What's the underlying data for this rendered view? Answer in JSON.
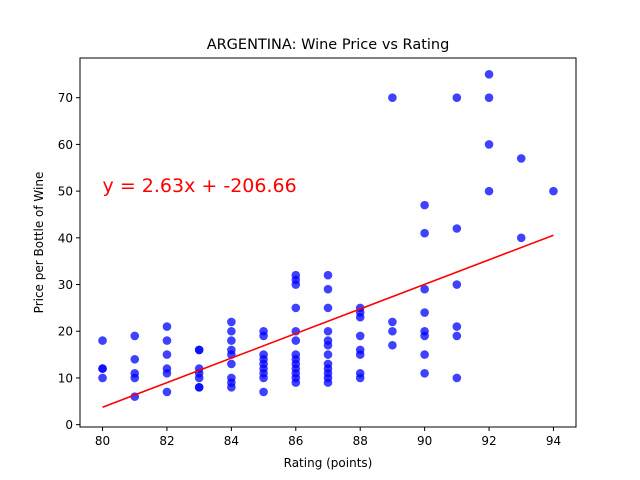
{
  "chart_data": {
    "type": "scatter",
    "title": "ARGENTINA: Wine Price vs Rating",
    "xlabel": "Rating (points)",
    "ylabel": "Price per Bottle of Wine",
    "xlim": [
      79.3,
      94.7
    ],
    "ylim": [
      -0.5,
      78.5
    ],
    "x_ticks": [
      80,
      82,
      84,
      86,
      88,
      90,
      92,
      94
    ],
    "y_ticks": [
      0,
      10,
      20,
      30,
      40,
      50,
      60,
      70
    ],
    "grid": false,
    "point_color": "#0000ff",
    "point_opacity": 0.75,
    "line_color": "#ff0000",
    "annotation": {
      "text": "y = 2.63x + -206.66",
      "color": "#ff0000",
      "x": 80,
      "y": 50
    },
    "regression": {
      "slope": 2.63,
      "intercept": -206.66,
      "x_range": [
        80,
        94
      ]
    },
    "points": [
      [
        80,
        18
      ],
      [
        80,
        12
      ],
      [
        80,
        12
      ],
      [
        80,
        10
      ],
      [
        81,
        19
      ],
      [
        81,
        14
      ],
      [
        81,
        11
      ],
      [
        81,
        10
      ],
      [
        81,
        6
      ],
      [
        82,
        21
      ],
      [
        82,
        18
      ],
      [
        82,
        15
      ],
      [
        82,
        12
      ],
      [
        82,
        11
      ],
      [
        82,
        7
      ],
      [
        83,
        16
      ],
      [
        83,
        16
      ],
      [
        83,
        12
      ],
      [
        83,
        11
      ],
      [
        83,
        10
      ],
      [
        83,
        8
      ],
      [
        83,
        8
      ],
      [
        84,
        22
      ],
      [
        84,
        20
      ],
      [
        84,
        18
      ],
      [
        84,
        16
      ],
      [
        84,
        15
      ],
      [
        84,
        13
      ],
      [
        84,
        10
      ],
      [
        84,
        9
      ],
      [
        84,
        8
      ],
      [
        85,
        20
      ],
      [
        85,
        19
      ],
      [
        85,
        15
      ],
      [
        85,
        14
      ],
      [
        85,
        13
      ],
      [
        85,
        12
      ],
      [
        85,
        11
      ],
      [
        85,
        10
      ],
      [
        85,
        7
      ],
      [
        86,
        32
      ],
      [
        86,
        31
      ],
      [
        86,
        30
      ],
      [
        86,
        25
      ],
      [
        86,
        20
      ],
      [
        86,
        18
      ],
      [
        86,
        15
      ],
      [
        86,
        14
      ],
      [
        86,
        13
      ],
      [
        86,
        12
      ],
      [
        86,
        11
      ],
      [
        86,
        10
      ],
      [
        86,
        9
      ],
      [
        87,
        32
      ],
      [
        87,
        29
      ],
      [
        87,
        25
      ],
      [
        87,
        20
      ],
      [
        87,
        18
      ],
      [
        87,
        17
      ],
      [
        87,
        15
      ],
      [
        87,
        13
      ],
      [
        87,
        12
      ],
      [
        87,
        11
      ],
      [
        87,
        10
      ],
      [
        87,
        9
      ],
      [
        88,
        25
      ],
      [
        88,
        24
      ],
      [
        88,
        23
      ],
      [
        88,
        19
      ],
      [
        88,
        16
      ],
      [
        88,
        15
      ],
      [
        88,
        11
      ],
      [
        88,
        10
      ],
      [
        89,
        70
      ],
      [
        89,
        22
      ],
      [
        89,
        20
      ],
      [
        89,
        17
      ],
      [
        90,
        47
      ],
      [
        90,
        41
      ],
      [
        90,
        29
      ],
      [
        90,
        24
      ],
      [
        90,
        20
      ],
      [
        90,
        19
      ],
      [
        90,
        15
      ],
      [
        90,
        11
      ],
      [
        91,
        70
      ],
      [
        91,
        42
      ],
      [
        91,
        30
      ],
      [
        91,
        21
      ],
      [
        91,
        19
      ],
      [
        91,
        10
      ],
      [
        92,
        75
      ],
      [
        92,
        70
      ],
      [
        92,
        60
      ],
      [
        92,
        50
      ],
      [
        93,
        57
      ],
      [
        93,
        40
      ],
      [
        94,
        50
      ]
    ]
  }
}
